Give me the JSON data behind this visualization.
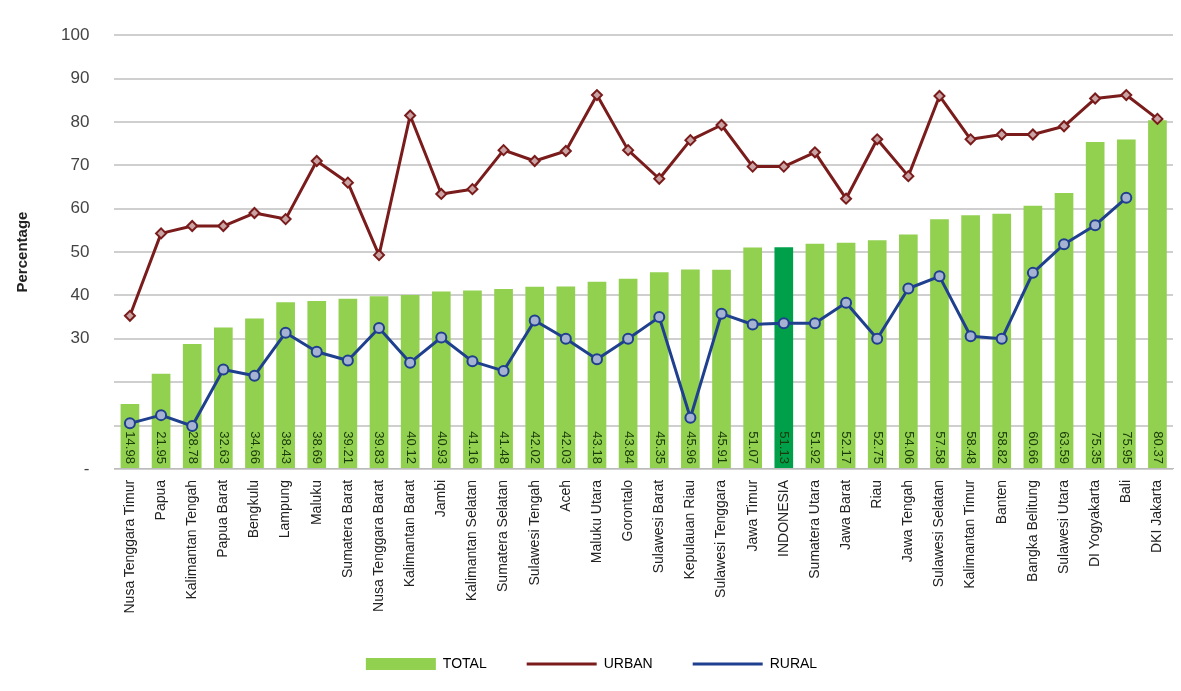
{
  "chart_data": {
    "type": "bar",
    "ylabel": "Percentage",
    "categories": [
      "Nusa Tenggara Timur",
      "Papua",
      "Kalimantan Tengah",
      "Papua Barat",
      "Bengkulu",
      "Lampung",
      "Maluku",
      "Sumatera Barat",
      "Nusa Tenggara Barat",
      "Kalimantan Barat",
      "Jambi",
      "Kalimantan Selatan",
      "Sumatera Selatan",
      "Sulawesi Tengah",
      "Aceh",
      "Maluku Utara",
      "Gorontalo",
      "Sulawesi Barat",
      "Kepulauan Riau",
      "Sulawesi Tenggara",
      "Jawa Timur",
      "INDONESIA",
      "Sumatera Utara",
      "Jawa Barat",
      "Riau",
      "Jawa Tengah",
      "Sulawesi Selatan",
      "Kalimantan Timur",
      "Banten",
      "Bangka Belitung",
      "Sulawesi Utara",
      "DI Yogyakarta",
      "Bali",
      "DKI Jakarta"
    ],
    "series": [
      {
        "name": "TOTAL",
        "color": "#92d050",
        "colors": [
          "#92d050",
          "#92d050",
          "#92d050",
          "#92d050",
          "#92d050",
          "#92d050",
          "#92d050",
          "#92d050",
          "#92d050",
          "#92d050",
          "#92d050",
          "#92d050",
          "#92d050",
          "#92d050",
          "#92d050",
          "#92d050",
          "#92d050",
          "#92d050",
          "#92d050",
          "#92d050",
          "#92d050",
          "#00a04a",
          "#92d050",
          "#92d050",
          "#92d050",
          "#92d050",
          "#92d050",
          "#92d050",
          "#92d050",
          "#92d050",
          "#92d050",
          "#92d050",
          "#92d050",
          "#92d050"
        ],
        "values": [
          14.98,
          21.95,
          28.78,
          32.63,
          34.66,
          38.43,
          38.69,
          39.21,
          39.83,
          40.12,
          40.93,
          41.16,
          41.48,
          42.02,
          42.03,
          43.18,
          43.84,
          45.35,
          45.96,
          45.91,
          51.07,
          51.13,
          51.92,
          52.17,
          52.75,
          54.06,
          57.58,
          58.48,
          58.82,
          60.66,
          63.59,
          75.35,
          75.95,
          80.37
        ],
        "value_labels": [
          "14.98",
          "21.95",
          "28.78",
          "32.63",
          "34.66",
          "38.43",
          "38.69",
          "39.21",
          "39.83",
          "40.12",
          "40.93",
          "41.16",
          "41.48",
          "42.02",
          "42.03",
          "43.18",
          "43.84",
          "45.35",
          "45.96",
          "45.91",
          "51.07",
          "51.13",
          "51.92",
          "52.17",
          "52.75",
          "54.06",
          "57.58",
          "58.48",
          "58.82",
          "60.66",
          "63.59",
          "75.35",
          "75.95",
          "80.37"
        ]
      },
      {
        "name": "URBAN",
        "type": "line",
        "color": "#7b1c1c",
        "marker": "diamond",
        "values": [
          35.3,
          54.3,
          56,
          56,
          59,
          57.6,
          71,
          66,
          49.3,
          81.5,
          63.4,
          64.5,
          73.5,
          71,
          73.3,
          86.2,
          73.5,
          66.9,
          75.8,
          79.3,
          69.7,
          69.7,
          73,
          62.3,
          76,
          67.5,
          86,
          76,
          77.1,
          77.1,
          79,
          85.4,
          86.2,
          80.7
        ]
      },
      {
        "name": "RURAL",
        "type": "line",
        "color": "#1f3f8f",
        "marker": "circle",
        "values": [
          10.5,
          12.4,
          9.9,
          22.9,
          21.5,
          31.4,
          27,
          25,
          32.5,
          24.5,
          30.3,
          24.8,
          22.6,
          34.2,
          30,
          25.3,
          30,
          35,
          11.8,
          35.8,
          33.3,
          33.6,
          33.6,
          38.3,
          30,
          41.6,
          44.4,
          30.6,
          30,
          45.2,
          51.8,
          56.2,
          62.5,
          null
        ]
      }
    ],
    "ylim": [
      0,
      100
    ],
    "yticks": [
      {
        "value": 0,
        "label": "-"
      },
      {
        "value": 10,
        "label": null
      },
      {
        "value": 20,
        "label": null
      },
      30,
      40,
      50,
      60,
      70,
      80,
      90,
      100
    ],
    "grid": "y",
    "legend": "bottom"
  }
}
